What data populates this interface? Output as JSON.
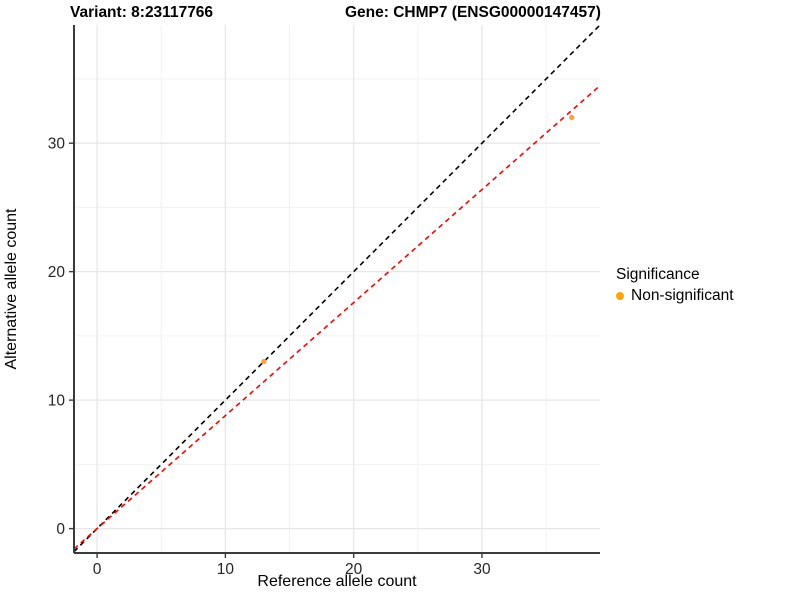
{
  "chart_data": {
    "type": "scatter",
    "titles": {
      "variant": "Variant: 8:23117766",
      "gene": "Gene: CHMP7 (ENSG00000147457)"
    },
    "xlabel": "Reference allele count",
    "ylabel": "Alternative allele count",
    "x_ticks": [
      0,
      10,
      20,
      30
    ],
    "y_ticks": [
      0,
      10,
      20,
      30
    ],
    "minor_tick_step": 5,
    "grid_max": 35,
    "xlim": [
      -1.8,
      39.2
    ],
    "ylim": [
      -1.9,
      39.2
    ],
    "grid": true,
    "points": [
      {
        "x": 13,
        "y": 13,
        "significance": "Non-significant"
      },
      {
        "x": 37,
        "y": 32,
        "significance": "Non-significant"
      }
    ],
    "lines": [
      {
        "name": "identity-line",
        "slope": 1,
        "intercept": 0,
        "color": "#000000",
        "style": "dashed"
      },
      {
        "name": "fit-line",
        "slope": 0.8797,
        "intercept": 0,
        "color": "#FF0000",
        "style": "dashed"
      }
    ],
    "legend": {
      "title": "Significance",
      "position": "right",
      "items": [
        {
          "label": "Non-significant",
          "color": "#FFA500"
        }
      ]
    },
    "colors": {
      "point": "#FAA43A",
      "grid_major": "#E7E7E7",
      "grid_minor": "#F2F2F2",
      "axis": "#3A3A3A",
      "tick": "#3A3A3A"
    }
  }
}
